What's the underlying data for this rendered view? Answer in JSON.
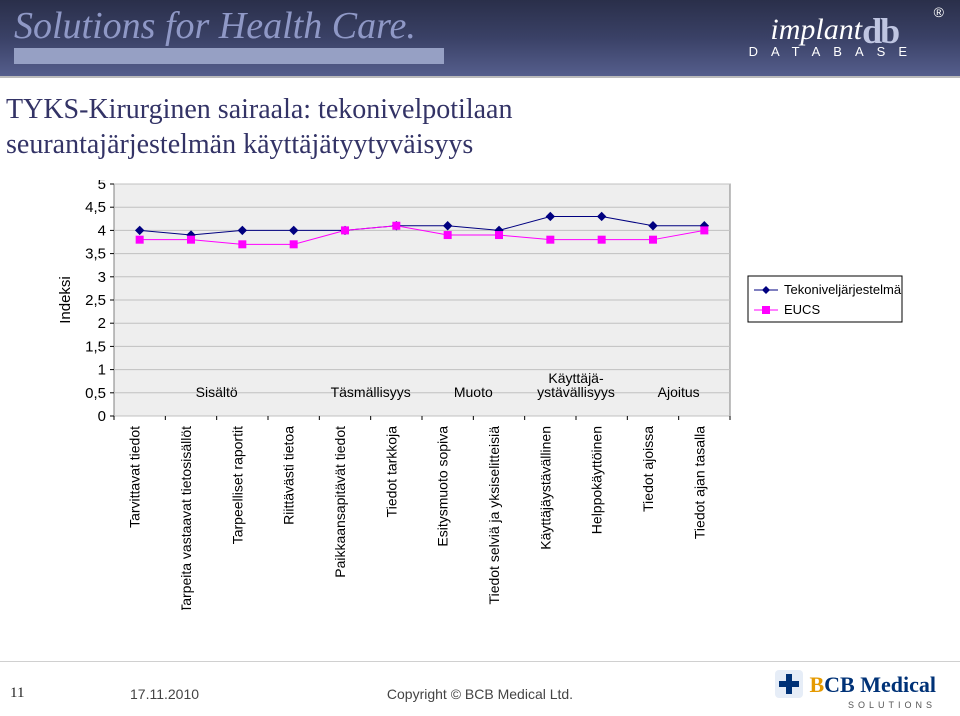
{
  "header": {
    "slogan": "Solutions for Health Care.",
    "logo1_left": "implant",
    "logo1_right": "db",
    "logo1_reg": "®",
    "logo1_sub": "DATABASE"
  },
  "title_line1": "TYKS-Kirurginen sairaala: tekonivelpotilaan",
  "title_line2": "seurantajärjestelmän käyttäjätyytyväisyys",
  "chart": {
    "type": "line",
    "background_color": "#ffffff",
    "plot_bg": "#eeeeee",
    "plot_border": "#808080",
    "grid_color": "#c0c0c0",
    "x_categories": [
      "Tarvittavat tiedot",
      "Tarpeita vastaavat tietosisällöt",
      "Tarpeelliset raportit",
      "Riittävästi tietoa",
      "Paikkaansapitävät tiedot",
      "Tiedot tarkkoja",
      "Esitysmuoto sopiva",
      "Tiedot selviä ja yksiselitteisiä",
      "Käyttäjäystävällinen",
      "Helppokäyttöinen",
      "Tiedot ajoissa",
      "Tiedot ajan tasalla"
    ],
    "x_group_labels": [
      "Sisältö",
      "Täsmällisyys",
      "Muoto",
      "Käyttäjä-\nystävällisyys",
      "Ajoitus"
    ],
    "x_group_spans": [
      [
        0,
        3
      ],
      [
        4,
        5
      ],
      [
        6,
        7
      ],
      [
        8,
        9
      ],
      [
        10,
        11
      ]
    ],
    "x_group_y": 0.5,
    "y_label": "Indeksi",
    "y_label_fontsize": 15,
    "ylim": [
      0,
      5
    ],
    "ytick_step": 0.5,
    "ytick_labels": [
      "0",
      "0,5",
      "1",
      "1,5",
      "2",
      "2,5",
      "3",
      "3,5",
      "4",
      "4,5",
      "5"
    ],
    "label_fontsize": 15,
    "xtick_fontsize": 14,
    "xtick_rotation": -90,
    "series": [
      {
        "name": "Tekoniveljärjestelmä",
        "color": "#000080",
        "marker": "diamond",
        "marker_size": 8,
        "line_width": 1,
        "values": [
          4.0,
          3.9,
          4.0,
          4.0,
          4.0,
          4.1,
          4.1,
          4.0,
          4.3,
          4.3,
          4.1,
          4.1
        ]
      },
      {
        "name": "EUCS",
        "color": "#ff00ff",
        "marker": "square",
        "marker_size": 7,
        "line_width": 1,
        "values": [
          3.8,
          3.8,
          3.7,
          3.7,
          4.0,
          4.1,
          3.9,
          3.9,
          3.8,
          3.8,
          3.8,
          4.0
        ]
      }
    ],
    "legend": {
      "position": "right",
      "fontsize": 13,
      "border": "#000000",
      "marker": "line+marker"
    }
  },
  "footer": {
    "page": "11",
    "date": "17.11.2010",
    "copyright": "Copyright © BCB Medical Ltd.",
    "logo_text": "BCB Medical",
    "logo_tag": "SOLUTIONS"
  }
}
